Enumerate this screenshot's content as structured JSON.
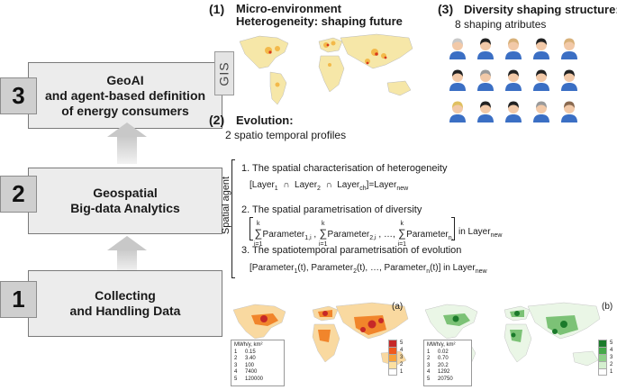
{
  "stages": [
    {
      "num": "3",
      "label": "GeoAI and agent-based definition of energy consumers"
    },
    {
      "num": "2",
      "label": "Geospatial Big-data Analytics"
    },
    {
      "num": "1",
      "label": "Collecting and Handling Data"
    }
  ],
  "stage_lines": {
    "s3": [
      "GeoAI",
      "and agent-based definition",
      "of energy consumers"
    ],
    "s2": [
      "Geospatial",
      "Big-data Analytics"
    ],
    "s1": [
      "Collecting",
      "and Handling Data"
    ]
  },
  "section1": {
    "num": "(1)",
    "title_line1": "Micro-environment",
    "title_line2": "Heterogeneity: shaping future",
    "side_label": "GIS"
  },
  "section2": {
    "num": "(2)",
    "title": "Evolution:",
    "subtitle": "2 spatio temporal profiles"
  },
  "section3": {
    "num": "(3)",
    "title": "Diversity shaping structure:",
    "subtitle": "8 shaping atributes"
  },
  "spatial_agent": {
    "label": "Spatial agent",
    "items": [
      "1. The spatial characterisation of heterogeneity",
      "2. The spatial parametrisation of diversity",
      "3. The spatiotemporal parametrisation of evolution"
    ],
    "in_layer": "in Layer",
    "layer_sub": "new"
  },
  "map_a": {
    "tag": "(a)",
    "unit": "MWh/y, km²",
    "legend": [
      [
        "1",
        "0.15"
      ],
      [
        "2",
        "3.40"
      ],
      [
        "3",
        "100"
      ],
      [
        "4",
        "7400"
      ],
      [
        "5",
        "120000"
      ]
    ],
    "scale": [
      "5",
      "4",
      "3",
      "2",
      "1"
    ],
    "colors": [
      "#c62828",
      "#ef5a1e",
      "#f7a13a",
      "#fde0a0",
      "#ffffff"
    ]
  },
  "map_b": {
    "tag": "(b)",
    "unit": "MWh/y, km²",
    "legend": [
      [
        "1",
        "0.02"
      ],
      [
        "2",
        "0.70"
      ],
      [
        "3",
        "20.2"
      ],
      [
        "4",
        "1292"
      ],
      [
        "5",
        "20750"
      ]
    ],
    "scale": [
      "5",
      "4",
      "3",
      "2",
      "1"
    ],
    "colors": [
      "#1b7a2b",
      "#46a84a",
      "#8fd08a",
      "#d4efcf",
      "#ffffff"
    ]
  },
  "avatar_hair_colors": [
    "#c9c9c9",
    "#222222",
    "#d8b17a",
    "#222222",
    "#d8b17a",
    "#222222",
    "#9a9a9a",
    "#222222",
    "#222222",
    "#222222",
    "#e0c060",
    "#222222",
    "#222222",
    "#9a9a9a",
    "#8a6a50"
  ]
}
